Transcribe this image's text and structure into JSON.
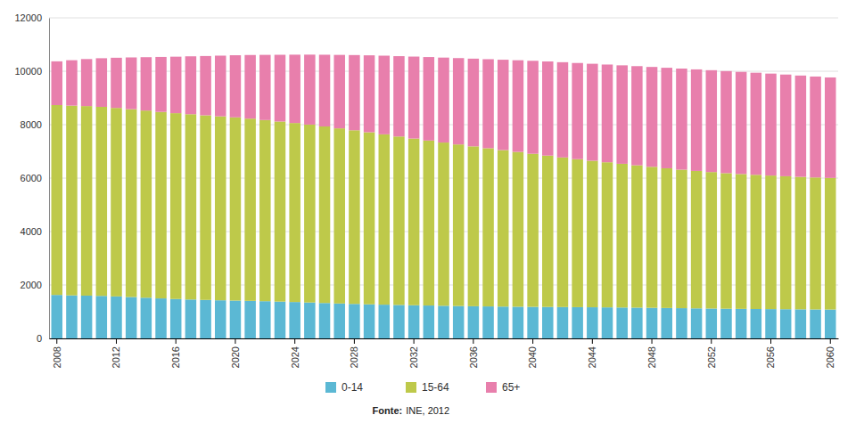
{
  "chart_data": {
    "type": "bar",
    "stacked": true,
    "grid": true,
    "legend": "bottom",
    "categories": [
      "2008",
      null,
      null,
      null,
      "2012",
      null,
      null,
      null,
      "2016",
      null,
      null,
      null,
      "2020",
      null,
      null,
      null,
      "2024",
      null,
      null,
      null,
      "2028",
      null,
      null,
      null,
      "2032",
      null,
      null,
      null,
      "2036",
      null,
      null,
      null,
      "2040",
      null,
      null,
      null,
      "2044",
      null,
      null,
      null,
      "2048",
      null,
      null,
      null,
      "2052",
      null,
      null,
      null,
      "2056",
      null,
      null,
      null,
      "2060"
    ],
    "series": [
      {
        "name": "0-14",
        "color": "#5bb8d4",
        "values": [
          1627,
          1610,
          1601,
          1591,
          1572,
          1549,
          1523,
          1497,
          1475,
          1456,
          1440,
          1427,
          1416,
          1406,
          1393,
          1378,
          1362,
          1344,
          1325,
          1307,
          1291,
          1276,
          1263,
          1252,
          1241,
          1231,
          1221,
          1212,
          1204,
          1197,
          1191,
          1185,
          1181,
          1177,
          1173,
          1169,
          1165,
          1161,
          1156,
          1151,
          1145,
          1138,
          1131,
          1124,
          1117,
          1111,
          1105,
          1100,
          1096,
          1092,
          1088,
          1084,
          1081
        ]
      },
      {
        "name": "15-64",
        "color": "#bec94a",
        "values": [
          7106,
          7103,
          7095,
          7076,
          7055,
          7030,
          7005,
          6980,
          6955,
          6935,
          6910,
          6885,
          6858,
          6820,
          6780,
          6740,
          6700,
          6658,
          6608,
          6555,
          6500,
          6440,
          6375,
          6305,
          6240,
          6175,
          6110,
          6048,
          5985,
          5922,
          5858,
          5795,
          5730,
          5665,
          5600,
          5540,
          5485,
          5432,
          5380,
          5328,
          5278,
          5230,
          5185,
          5145,
          5110,
          5075,
          5048,
          5023,
          5000,
          4978,
          4958,
          4940,
          4925
        ]
      },
      {
        "name": "65+",
        "color": "#e87fac",
        "values": [
          1638,
          1700,
          1760,
          1820,
          1878,
          1938,
          1998,
          2058,
          2115,
          2168,
          2220,
          2272,
          2325,
          2382,
          2440,
          2498,
          2558,
          2620,
          2685,
          2750,
          2815,
          2880,
          2945,
          3008,
          3068,
          3125,
          3180,
          3232,
          3282,
          3332,
          3382,
          3432,
          3480,
          3525,
          3565,
          3600,
          3630,
          3658,
          3685,
          3712,
          3738,
          3762,
          3784,
          3800,
          3812,
          3820,
          3824,
          3822,
          3816,
          3806,
          3793,
          3778,
          3762
        ]
      }
    ],
    "ylim": [
      0,
      12000
    ],
    "yticks": [
      0,
      2000,
      4000,
      6000,
      8000,
      10000,
      12000
    ],
    "annotations": [
      "Fonte:",
      "INE, 2012"
    ]
  }
}
